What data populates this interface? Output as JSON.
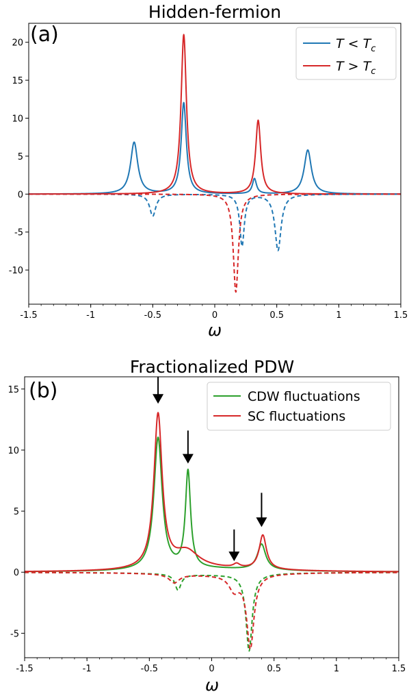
{
  "colors": {
    "blue": "#1f77b4",
    "red": "#d62728",
    "green": "#2ca02c",
    "arrow": "#000000"
  },
  "chart_data": [
    {
      "type": "line",
      "panel_label": "(a)",
      "title": "Hidden-fermion",
      "xlabel": "ω",
      "ylabel": "",
      "xlim": [
        -1.5,
        1.5
      ],
      "ylim": [
        -14.5,
        22.5
      ],
      "xticks": [
        -1.5,
        -1,
        -0.5,
        0,
        0.5,
        1,
        1.5
      ],
      "xtick_labels": [
        "-1.5",
        "-1",
        "-0.5",
        "0",
        "0.5",
        "1",
        "1.5"
      ],
      "yticks": [
        -10,
        -5,
        0,
        5,
        10,
        15,
        20
      ],
      "ytick_labels": [
        "-10",
        "-5",
        "0",
        "5",
        "10",
        "15",
        "20"
      ],
      "legend_position": "top-right",
      "grid": false,
      "series": [
        {
          "name": "T < Tc",
          "legend_var": "T",
          "legend_op": " < ",
          "legend_sym": "T",
          "legend_sub": "c",
          "color": "blue",
          "style": "solid",
          "peaks": [
            [
              -0.65,
              6.8,
              0.035
            ],
            [
              -0.25,
              12.0,
              0.025
            ],
            [
              0.32,
              2.0,
              0.02
            ],
            [
              0.75,
              5.8,
              0.035
            ]
          ]
        },
        {
          "name": "T > Tc",
          "legend_var": "T",
          "legend_op": " > ",
          "legend_sym": "T",
          "legend_sub": "c",
          "color": "red",
          "style": "solid",
          "peaks": [
            [
              -0.25,
              21.0,
              0.026
            ],
            [
              0.35,
              9.7,
              0.025
            ]
          ]
        },
        {
          "color": "blue",
          "style": "dashed",
          "peaks": [
            [
              -0.5,
              -2.9,
              0.03
            ],
            [
              0.22,
              -6.8,
              0.022
            ],
            [
              0.51,
              -7.4,
              0.03
            ]
          ]
        },
        {
          "color": "red",
          "style": "dashed",
          "peaks": [
            [
              0.17,
              -12.9,
              0.025
            ]
          ]
        }
      ]
    },
    {
      "type": "line",
      "panel_label": "(b)",
      "title": "Fractionalized PDW",
      "xlabel": "ω",
      "ylabel": "",
      "xlim": [
        -1.5,
        1.5
      ],
      "ylim": [
        -7.0,
        16.0
      ],
      "xticks": [
        -1.5,
        -1,
        -0.5,
        0,
        0.5,
        1,
        1.5
      ],
      "xtick_labels": [
        "-1.5",
        "-1",
        "-0.5",
        "0",
        "0.5",
        "1",
        "1.5"
      ],
      "yticks": [
        -5,
        0,
        5,
        10,
        15
      ],
      "ytick_labels": [
        "-5",
        "0",
        "5",
        "10",
        "15"
      ],
      "legend_position": "top-right",
      "grid": false,
      "series": [
        {
          "name": "CDW fluctuations",
          "color": "green",
          "style": "solid",
          "peaks": [
            [
              -0.43,
              10.8,
              0.04
            ],
            [
              -0.19,
              7.9,
              0.025
            ],
            [
              0.4,
              2.1,
              0.04
            ],
            [
              0.0,
              0.25,
              0.6
            ]
          ]
        },
        {
          "name": "SC fluctuations",
          "color": "red",
          "style": "solid",
          "peaks": [
            [
              -0.43,
              12.6,
              0.04
            ],
            [
              -0.2,
              1.4,
              0.12
            ],
            [
              0.2,
              0.3,
              0.03
            ],
            [
              0.41,
              2.8,
              0.035
            ],
            [
              0.0,
              0.25,
              0.6
            ]
          ]
        },
        {
          "color": "green",
          "style": "dashed",
          "peaks": [
            [
              -0.27,
              -1.3,
              0.03
            ],
            [
              0.3,
              -6.3,
              0.03
            ],
            [
              0.0,
              -0.2,
              0.5
            ]
          ]
        },
        {
          "color": "red",
          "style": "dashed",
          "peaks": [
            [
              -0.3,
              -0.7,
              0.05
            ],
            [
              0.18,
              -1.2,
              0.05
            ],
            [
              0.31,
              -6.0,
              0.035
            ],
            [
              0.0,
              -0.2,
              0.5
            ]
          ]
        }
      ],
      "arrows": [
        {
          "x": -0.43,
          "y_top": 16.0,
          "y_tip": 13.8
        },
        {
          "x": -0.19,
          "y_top": 11.6,
          "y_tip": 8.9
        },
        {
          "x": 0.18,
          "y_top": 3.5,
          "y_tip": 0.9
        },
        {
          "x": 0.4,
          "y_top": 6.5,
          "y_tip": 3.7
        }
      ]
    }
  ]
}
